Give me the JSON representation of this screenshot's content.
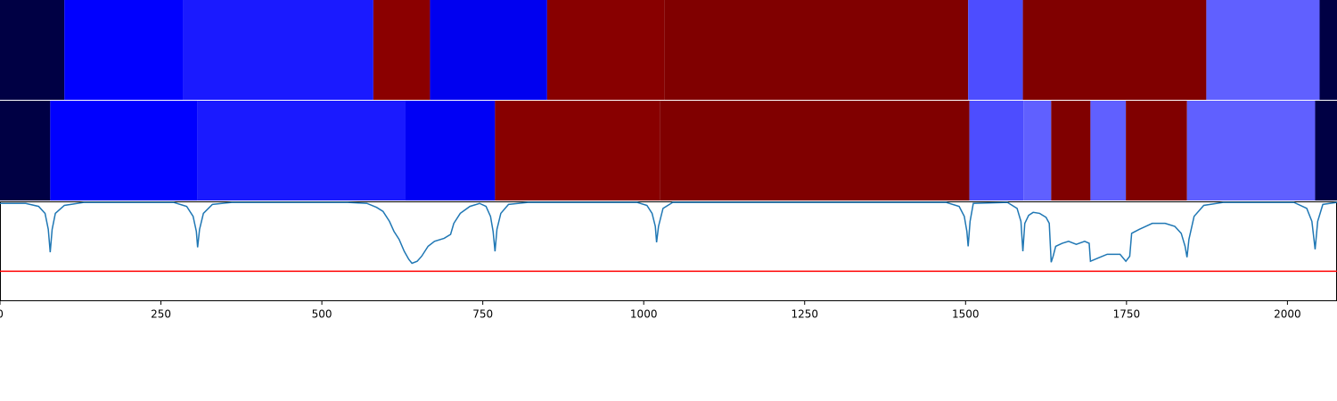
{
  "chart_data": [
    {
      "type": "segments",
      "xlim": [
        0,
        2077
      ],
      "bins": [
        0,
        100,
        285,
        580,
        668,
        850,
        1032,
        1504,
        1589,
        1874,
        2050,
        2077
      ],
      "colors": [
        "#000044",
        "#0000ff",
        "#1a1aff",
        "#8b0000",
        "#0000f0",
        "#880000",
        "#800000",
        "#4d4dff",
        "#800000",
        "#6060ff",
        "#000044"
      ]
    },
    {
      "type": "segments",
      "xlim": [
        0,
        2077
      ],
      "bins": [
        0,
        78,
        307,
        630,
        769,
        1025,
        1506,
        1590,
        1633,
        1694,
        1749,
        1844,
        2043,
        2077
      ],
      "colors": [
        "#000044",
        "#0000ff",
        "#1a1aff",
        "#0000f5",
        "#880000",
        "#800000",
        "#4d4dff",
        "#6060ff",
        "#800000",
        "#6060ff",
        "#800000",
        "#6060ff",
        "#000044"
      ]
    },
    {
      "type": "line",
      "xlim": [
        0,
        2077
      ],
      "ylim": [
        0,
        1
      ],
      "xticks": [
        0,
        250,
        500,
        750,
        1000,
        1250,
        1500,
        1750,
        2000
      ],
      "threshold": 0.3,
      "threshold_color": "#ff0000",
      "series": [
        {
          "color": "#1f77b4",
          "x": [
            0,
            40,
            60,
            70,
            75,
            78,
            81,
            86,
            100,
            130,
            270,
            290,
            300,
            305,
            307,
            310,
            316,
            330,
            360,
            540,
            570,
            585,
            595,
            605,
            612,
            620,
            628,
            635,
            640,
            648,
            655,
            665,
            675,
            690,
            700,
            705,
            715,
            730,
            745,
            755,
            762,
            766,
            769,
            772,
            778,
            790,
            820,
            990,
            1005,
            1013,
            1018,
            1020,
            1023,
            1030,
            1045,
            1470,
            1490,
            1498,
            1502,
            1504,
            1507,
            1512,
            1565,
            1580,
            1586,
            1589,
            1592,
            1598,
            1605,
            1615,
            1625,
            1630,
            1633,
            1636,
            1640,
            1650,
            1660,
            1672,
            1685,
            1692,
            1694,
            1705,
            1720,
            1740,
            1749,
            1755,
            1758,
            1770,
            1790,
            1810,
            1825,
            1835,
            1841,
            1844,
            1847,
            1855,
            1870,
            1900,
            2010,
            2030,
            2038,
            2043,
            2047,
            2055,
            2077
          ],
          "values": [
            0.98,
            0.98,
            0.95,
            0.88,
            0.72,
            0.49,
            0.72,
            0.88,
            0.96,
            0.99,
            0.99,
            0.95,
            0.85,
            0.7,
            0.54,
            0.72,
            0.88,
            0.97,
            0.99,
            0.99,
            0.98,
            0.94,
            0.9,
            0.8,
            0.7,
            0.62,
            0.5,
            0.42,
            0.38,
            0.4,
            0.45,
            0.55,
            0.6,
            0.63,
            0.67,
            0.78,
            0.88,
            0.95,
            0.98,
            0.95,
            0.85,
            0.7,
            0.5,
            0.72,
            0.88,
            0.97,
            0.99,
            0.99,
            0.96,
            0.88,
            0.75,
            0.59,
            0.75,
            0.93,
            0.99,
            0.99,
            0.95,
            0.85,
            0.7,
            0.55,
            0.8,
            0.98,
            0.99,
            0.93,
            0.8,
            0.5,
            0.78,
            0.86,
            0.89,
            0.88,
            0.84,
            0.78,
            0.39,
            0.45,
            0.55,
            0.58,
            0.6,
            0.57,
            0.6,
            0.58,
            0.4,
            0.43,
            0.47,
            0.47,
            0.4,
            0.45,
            0.68,
            0.72,
            0.78,
            0.78,
            0.75,
            0.68,
            0.55,
            0.44,
            0.62,
            0.85,
            0.96,
            0.99,
            0.99,
            0.93,
            0.8,
            0.52,
            0.8,
            0.97,
            0.99
          ]
        }
      ]
    }
  ]
}
